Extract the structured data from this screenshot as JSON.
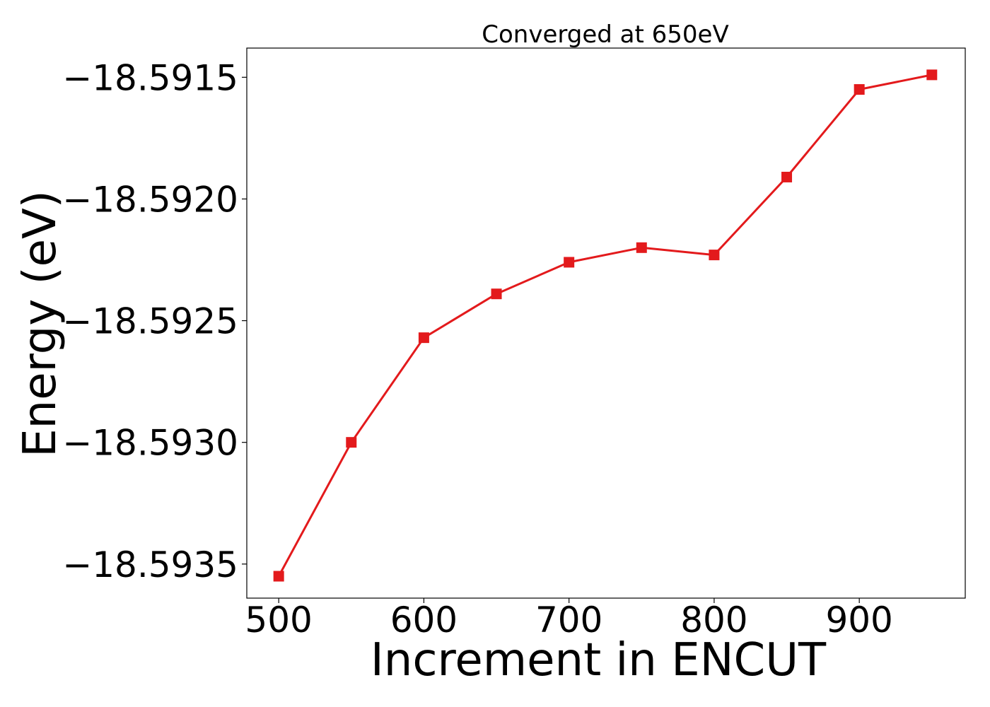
{
  "chart_data": {
    "type": "line",
    "title": "Converged at 650eV",
    "xlabel": "Increment in ENCUT",
    "ylabel": "Energy (eV)",
    "x": [
      500,
      550,
      600,
      650,
      700,
      750,
      800,
      850,
      900,
      950
    ],
    "series": [
      {
        "values": [
          -18.59355,
          -18.593,
          -18.59257,
          -18.59239,
          -18.59226,
          -18.5922,
          -18.59223,
          -18.59191,
          -18.59155,
          -18.59149
        ],
        "color": "#e31a1c",
        "marker": "square"
      }
    ],
    "xticks": [
      500,
      600,
      700,
      800,
      900
    ],
    "xtick_labels": [
      "500",
      "600",
      "700",
      "800",
      "900"
    ],
    "yticks": [
      -18.5935,
      -18.593,
      -18.5925,
      -18.592,
      -18.5915
    ],
    "ytick_labels": [
      "−18.5935",
      "−18.5930",
      "−18.5925",
      "−18.5920",
      "−18.5915"
    ],
    "xlim": [
      478,
      973
    ],
    "ylim": [
      -18.59364,
      -18.59138
    ],
    "grid": false,
    "legend": "none"
  }
}
